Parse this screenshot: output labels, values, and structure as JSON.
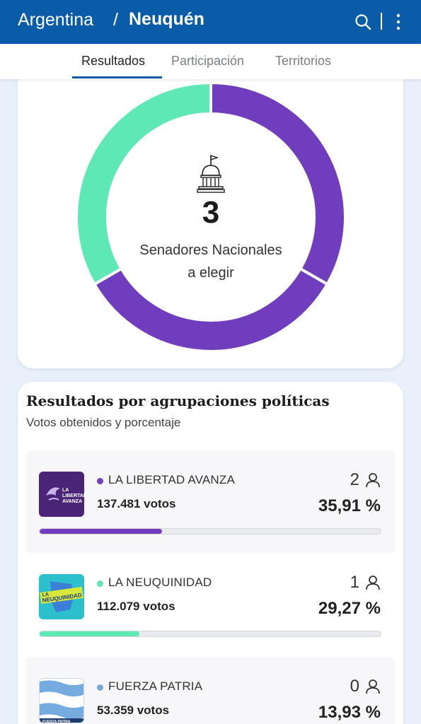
{
  "header": {
    "country": "Argentina",
    "separator": "/",
    "province": "Neuquén",
    "color": "#0a5ba8"
  },
  "tabs": [
    {
      "label": "Resultados",
      "active": true
    },
    {
      "label": "Participación",
      "active": false
    },
    {
      "label": "Territorios",
      "active": false
    }
  ],
  "summary": {
    "seats_number": "3",
    "seats_label_line1": "Senadores Nacionales",
    "seats_label_line2": "a elegir",
    "icon": "capitol-icon",
    "donut_segments": [
      {
        "party": "LA LIBERTAD AVANZA",
        "seats": 1,
        "color": "#6f3dbd"
      },
      {
        "party": "LA LIBERTAD AVANZA",
        "seats": 1,
        "color": "#6f3dbd"
      },
      {
        "party": "LA NEUQUINIDAD",
        "seats": 1,
        "color": "#5ee8b5"
      }
    ]
  },
  "results": {
    "title": "Resultados por agrupaciones políticas",
    "subtitle": "Votos obtenidos y porcentaje",
    "parties": [
      {
        "name": "LA LIBERTAD AVANZA",
        "votes": "137.481 votos",
        "seats": "2",
        "percent": "35,91 %",
        "share": 0.3591,
        "color": "#6f3dbd",
        "logo_text": "LA LIBERTAD AVANZA"
      },
      {
        "name": "LA NEUQUINIDAD",
        "votes": "112.079 votos",
        "seats": "1",
        "percent": "29,27 %",
        "share": 0.2927,
        "color": "#5ee8b5",
        "logo_text": "LA NEUQUINIDAD"
      },
      {
        "name": "FUERZA PATRIA",
        "votes": "53.359 votos",
        "seats": "0",
        "percent": "13,93 %",
        "share": 0.1393,
        "color": "#7aa9d6",
        "logo_text": "FUERZA PATRIA"
      }
    ]
  }
}
